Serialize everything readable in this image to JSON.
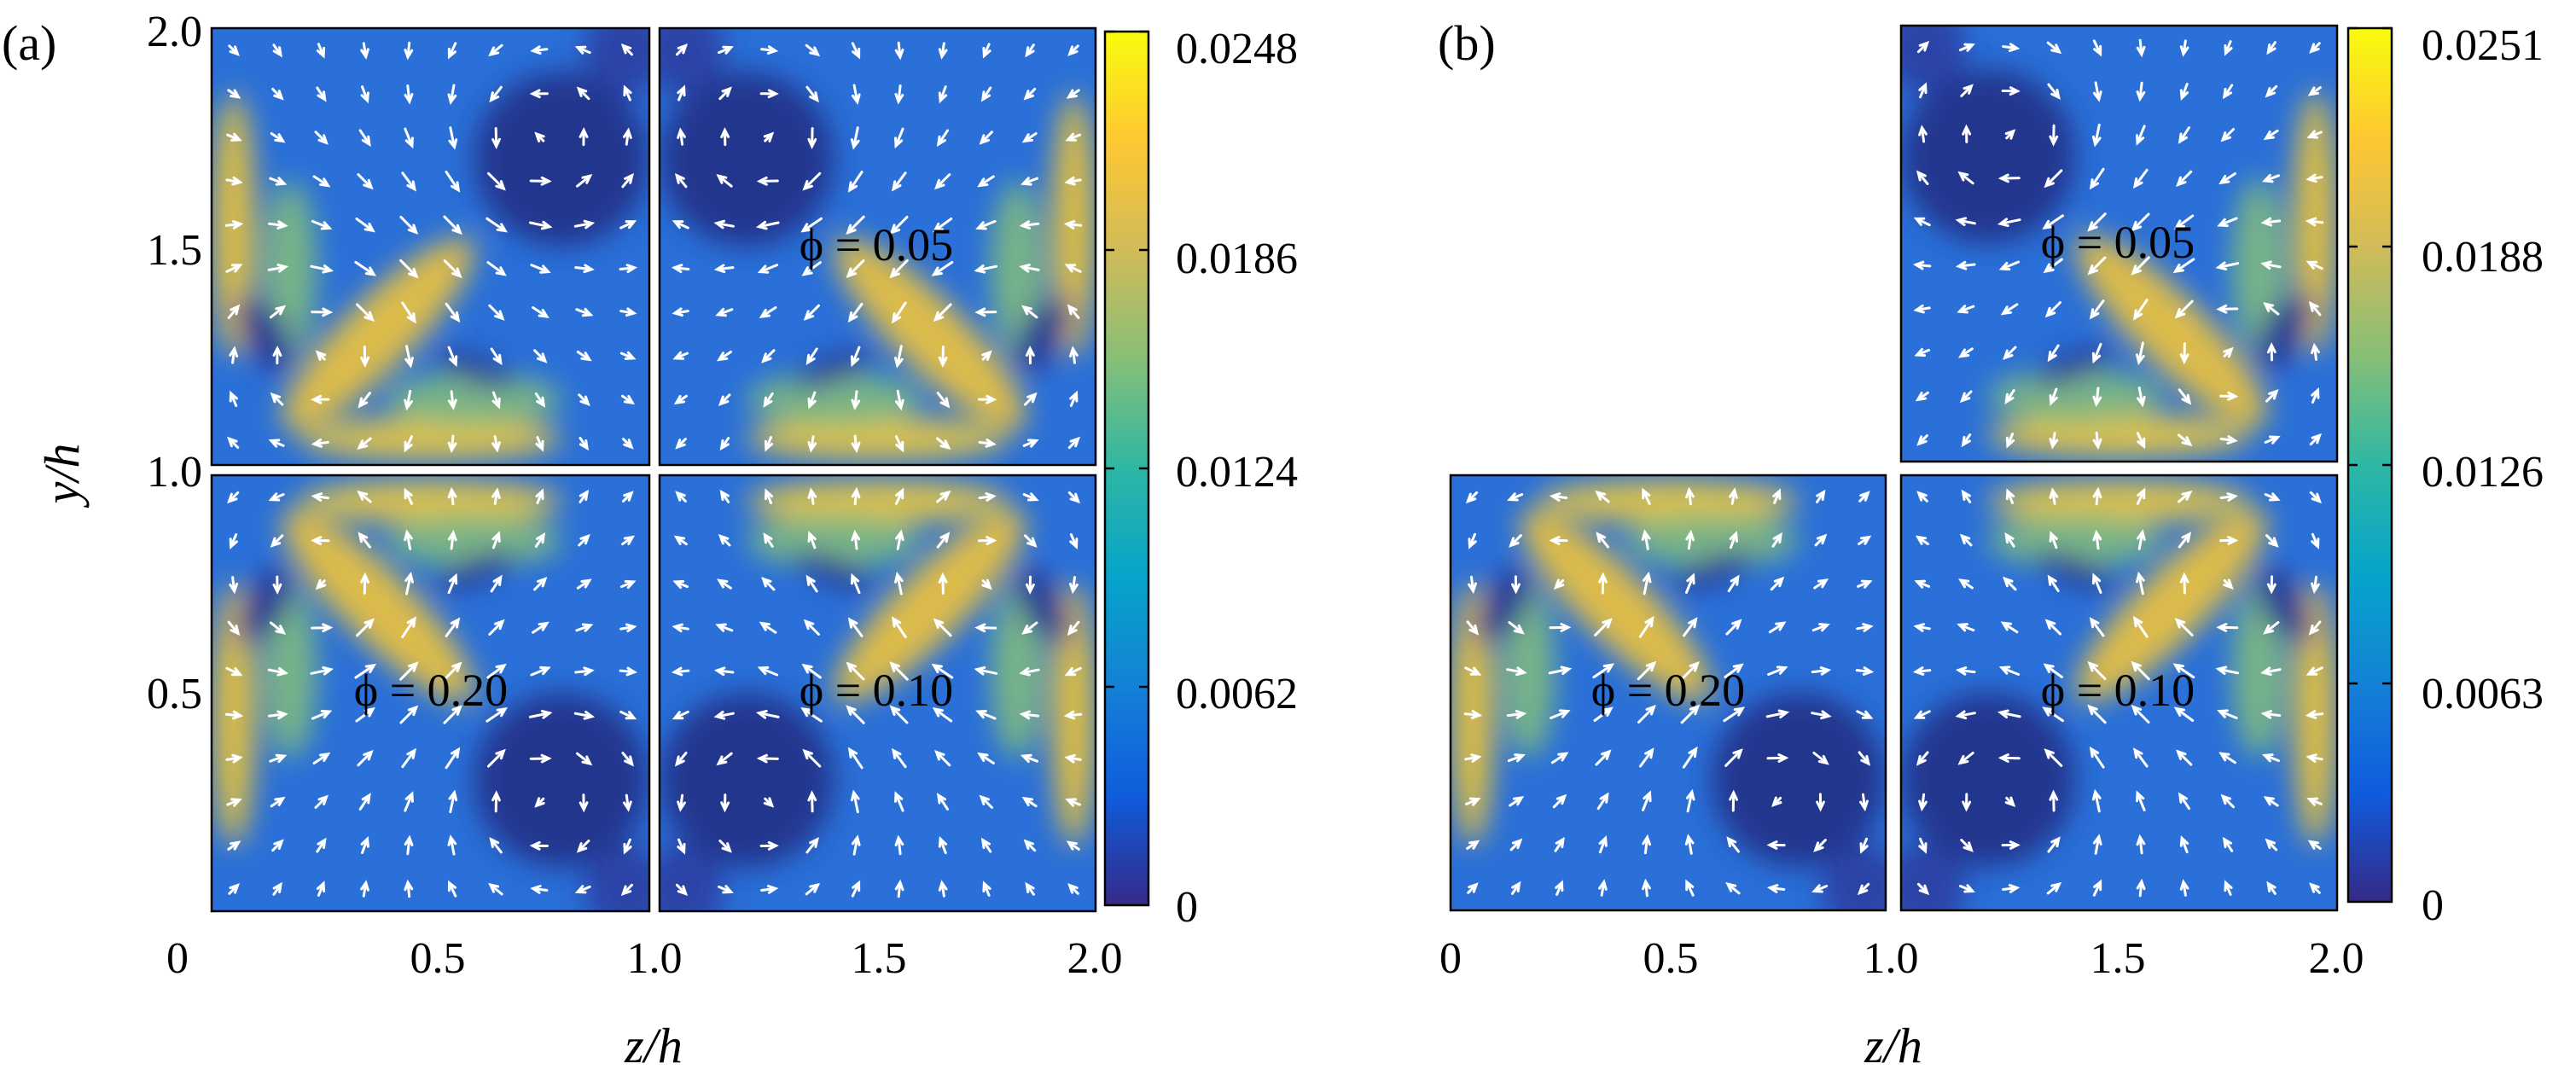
{
  "chart_data": [
    {
      "type": "heatmap",
      "panel_label": "(a)",
      "xlabel": "z/h",
      "ylabel": "y/h",
      "x_ticks": [
        "0",
        "0.5",
        "1.0",
        "1.5",
        "2.0"
      ],
      "y_ticks": [
        "2.0",
        "1.5",
        "1.0",
        "0.5"
      ],
      "xlim": [
        0,
        2.0
      ],
      "ylim": [
        0,
        2.0
      ],
      "colorbar": {
        "range": [
          0,
          0.0248
        ],
        "ticks": [
          "0.0248",
          "0.0186",
          "0.0124",
          "0.0062",
          "0"
        ],
        "colormap": [
          "#352a87",
          "#0f5cdd",
          "#1481d6",
          "#06a4ca",
          "#2eb7a4",
          "#87bf77",
          "#d1bb59",
          "#fec832",
          "#f9fb0e"
        ]
      },
      "quadrants": [
        {
          "position": "top-left",
          "phi": null
        },
        {
          "position": "top-right",
          "phi": "ϕ = 0.05"
        },
        {
          "position": "bottom-left",
          "phi": "ϕ = 0.20"
        },
        {
          "position": "bottom-right",
          "phi": "ϕ = 0.10"
        }
      ],
      "overlay": "in-plane secondary-flow velocity vectors (white arrows)"
    },
    {
      "type": "heatmap",
      "panel_label": "(b)",
      "xlabel": "z/h",
      "ylabel": "",
      "x_ticks": [
        "0",
        "0.5",
        "1.0",
        "1.5",
        "2.0"
      ],
      "xlim": [
        0,
        2.0
      ],
      "ylim": [
        0,
        2.0
      ],
      "colorbar": {
        "range": [
          0,
          0.0251
        ],
        "ticks": [
          "0.0251",
          "0.0188",
          "0.0126",
          "0.0063",
          "0"
        ],
        "colormap": [
          "#352a87",
          "#0f5cdd",
          "#1481d6",
          "#06a4ca",
          "#2eb7a4",
          "#87bf77",
          "#d1bb59",
          "#fec832",
          "#f9fb0e"
        ]
      },
      "quadrants": [
        {
          "position": "top-right",
          "phi": "ϕ = 0.05"
        },
        {
          "position": "bottom-left",
          "phi": "ϕ = 0.20"
        },
        {
          "position": "bottom-right",
          "phi": "ϕ = 0.10"
        }
      ],
      "overlay": "in-plane secondary-flow velocity vectors (white arrows)"
    }
  ]
}
